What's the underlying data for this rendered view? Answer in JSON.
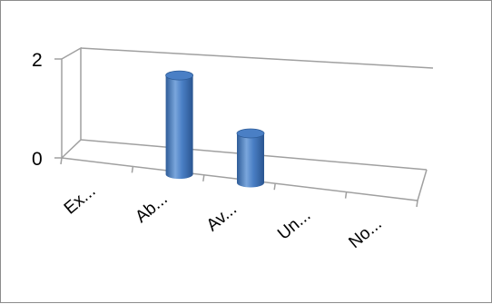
{
  "chart_data": {
    "type": "bar",
    "style": "3d-cylinder",
    "categories": [
      "Ex...",
      "Ab...",
      "Av...",
      "Un...",
      "No..."
    ],
    "values": [
      0,
      2,
      1,
      0,
      0
    ],
    "y_ticks": [
      "0",
      "2"
    ],
    "ylim": [
      0,
      2
    ],
    "grid": false,
    "legend": "none",
    "title": "",
    "xlabel": "",
    "ylabel": "",
    "colors": {
      "bar": "#4a7fc5",
      "bar_dark": "#2e5c98",
      "bar_light": "#7aa6dc",
      "axis": "#a0a0a0",
      "frame": "#8c8c8c"
    }
  }
}
